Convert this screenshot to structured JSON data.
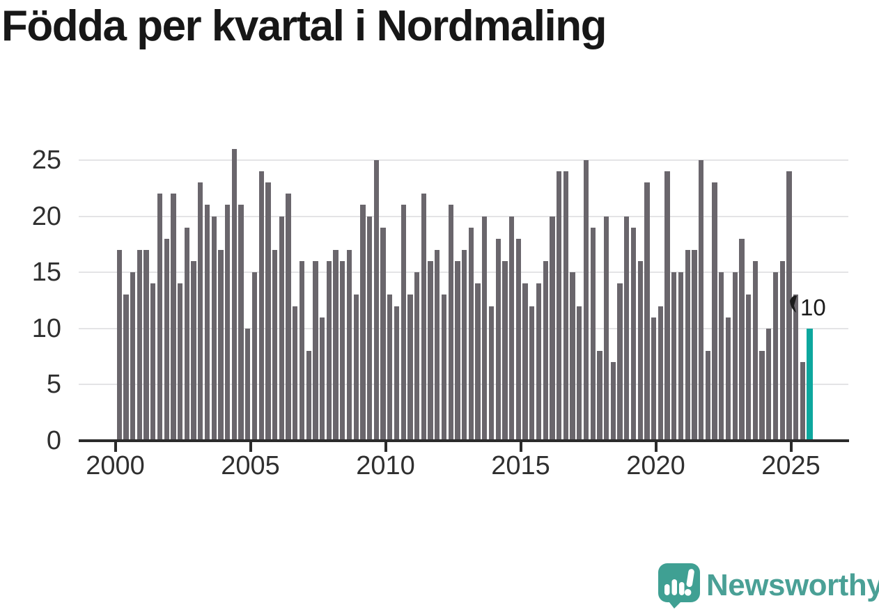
{
  "chart_data": {
    "type": "bar",
    "title": "Födda per kvartal i Nordmaling",
    "frequency": "quarterly",
    "x_start": "2000-Q1",
    "x_end": "2025-Q3",
    "values": [
      17,
      13,
      15,
      17,
      17,
      14,
      22,
      18,
      22,
      14,
      19,
      16,
      23,
      21,
      20,
      17,
      21,
      26,
      21,
      10,
      15,
      24,
      23,
      17,
      20,
      22,
      12,
      16,
      8,
      16,
      11,
      16,
      17,
      16,
      17,
      13,
      21,
      20,
      25,
      19,
      13,
      12,
      21,
      13,
      15,
      22,
      16,
      17,
      13,
      21,
      16,
      17,
      19,
      14,
      20,
      12,
      18,
      16,
      20,
      18,
      14,
      12,
      14,
      16,
      20,
      24,
      24,
      15,
      12,
      25,
      19,
      8,
      20,
      7,
      14,
      20,
      19,
      16,
      23,
      11,
      12,
      24,
      15,
      15,
      17,
      17,
      25,
      8,
      23,
      15,
      11,
      15,
      18,
      13,
      16,
      8,
      10,
      15,
      16,
      24,
      13,
      7,
      10
    ],
    "xticks": [
      "2000",
      "2005",
      "2010",
      "2015",
      "2020",
      "2025"
    ],
    "yticks": [
      "0",
      "5",
      "10",
      "15",
      "20",
      "25"
    ],
    "ylim": [
      0,
      26
    ],
    "grid": "horizontal",
    "bar_color": "#6a666c",
    "highlight": {
      "period": "2025-Q3",
      "value": 10,
      "label": "10",
      "color": "#0da79e"
    }
  },
  "footer": {
    "brand": "Newsworthy"
  }
}
